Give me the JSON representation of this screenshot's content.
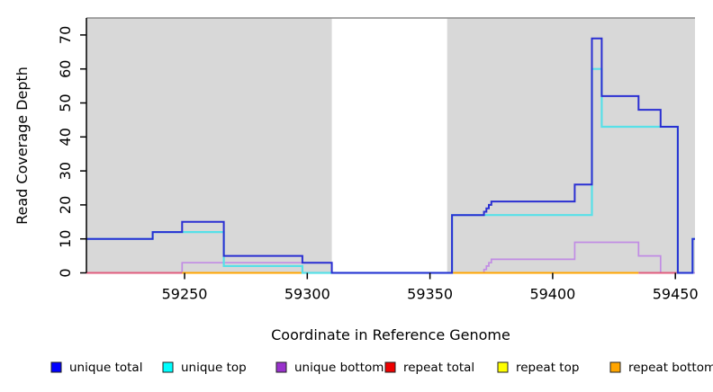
{
  "figure": {
    "background": "#ffffff",
    "panel_fill": "#d8d8d8",
    "panel_top_border": "#8a8a8a",
    "axis_color": "#000000"
  },
  "chart_data": {
    "type": "line",
    "subtype": "step-coverage",
    "title": "",
    "xlabel": "Coordinate in Reference Genome",
    "ylabel": "Read Coverage Depth",
    "x_range": [
      59210,
      59458
    ],
    "y_range": [
      0,
      75
    ],
    "x_ticks": [
      59250,
      59300,
      59350,
      59400,
      59450
    ],
    "y_ticks": [
      0,
      10,
      20,
      30,
      40,
      50,
      60,
      70
    ],
    "grid": false,
    "shaded_regions": [
      {
        "from": 59210,
        "to": 59310
      },
      {
        "from": 59357,
        "to": 59458
      }
    ],
    "white_gap": {
      "from": 59310,
      "to": 59357
    },
    "series": [
      {
        "name": "unique total",
        "line_color": "#2a2fd2",
        "steps": [
          [
            59210,
            10
          ],
          [
            59237,
            12
          ],
          [
            59249,
            15
          ],
          [
            59266,
            5
          ],
          [
            59298,
            3
          ],
          [
            59310,
            0
          ],
          [
            59359,
            17
          ],
          [
            59372,
            18
          ],
          [
            59373,
            19
          ],
          [
            59374,
            20
          ],
          [
            59375,
            21
          ],
          [
            59409,
            26
          ],
          [
            59416,
            69
          ],
          [
            59420,
            52
          ],
          [
            59435,
            48
          ],
          [
            59444,
            43
          ],
          [
            59451,
            0
          ],
          [
            59457,
            10
          ],
          [
            59458,
            10
          ]
        ]
      },
      {
        "name": "unique top",
        "line_color": "#57e0e8",
        "steps": [
          [
            59210,
            10
          ],
          [
            59237,
            12
          ],
          [
            59266,
            2
          ],
          [
            59298,
            0
          ],
          [
            59359,
            17
          ],
          [
            59416,
            60
          ],
          [
            59420,
            43
          ],
          [
            59451,
            0
          ],
          [
            59457,
            10
          ],
          [
            59458,
            10
          ]
        ]
      },
      {
        "name": "unique bottom",
        "line_color": "#c18ce4",
        "steps": [
          [
            59210,
            0
          ],
          [
            59249,
            3
          ],
          [
            59310,
            0
          ],
          [
            59372,
            1
          ],
          [
            59373,
            2
          ],
          [
            59374,
            3
          ],
          [
            59375,
            4
          ],
          [
            59409,
            9
          ],
          [
            59435,
            5
          ],
          [
            59444,
            0
          ],
          [
            59458,
            0
          ]
        ]
      },
      {
        "name": "repeat total",
        "line_color": "#e05c7e",
        "steps": [
          [
            59210,
            0
          ],
          [
            59458,
            0
          ]
        ]
      },
      {
        "name": "repeat top",
        "line_color": "#ffff00",
        "steps": [
          [
            59210,
            0
          ],
          [
            59458,
            0
          ]
        ]
      },
      {
        "name": "repeat bottom",
        "line_color": "#ffa500",
        "steps": [
          [
            59210,
            0
          ],
          [
            59458,
            0
          ]
        ]
      }
    ],
    "baseline_segments": [
      {
        "from": 59210,
        "to": 59249,
        "color": "#e05c7e"
      },
      {
        "from": 59249,
        "to": 59310,
        "color": "#ffa500"
      },
      {
        "from": 59359,
        "to": 59435,
        "color": "#ffa500"
      },
      {
        "from": 59435,
        "to": 59451,
        "color": "#e05c7e"
      }
    ],
    "legend": {
      "position": "bottom",
      "entries": [
        {
          "label": "unique total",
          "swatch_color": "#0000ff"
        },
        {
          "label": "unique top",
          "swatch_color": "#00ffff"
        },
        {
          "label": "unique bottom",
          "swatch_color": "#9932cc"
        },
        {
          "label": "repeat total",
          "swatch_color": "#ee0000"
        },
        {
          "label": "repeat top",
          "swatch_color": "#ffff00"
        },
        {
          "label": "repeat bottom",
          "swatch_color": "#ffa500"
        }
      ]
    }
  }
}
